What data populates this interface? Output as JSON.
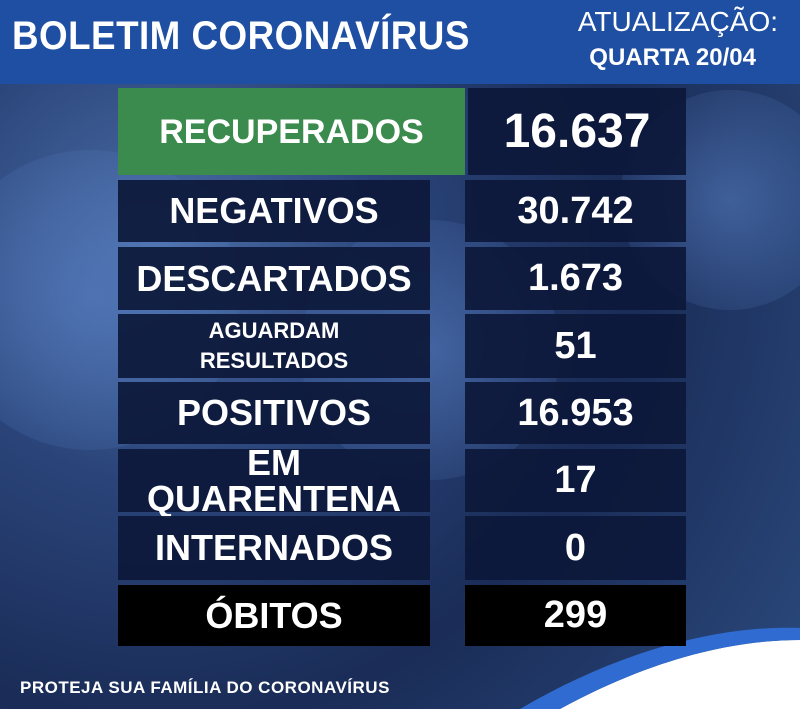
{
  "header": {
    "title": "BOLETIM CORONAVÍRUS",
    "update_label": "ATUALIZAÇÃO:",
    "update_date": "QUARTA 20/04"
  },
  "rows": [
    {
      "label": "RECUPERADOS",
      "value": "16.637"
    },
    {
      "label": "NEGATIVOS",
      "value": "30.742"
    },
    {
      "label": "DESCARTADOS",
      "value": "1.673"
    },
    {
      "label": "AGUARDAM\nRESULTADOS",
      "value": "51"
    },
    {
      "label": "POSITIVOS",
      "value": "16.953"
    },
    {
      "label": "EM QUARENTENA",
      "value": "17"
    },
    {
      "label": "INTERNADOS",
      "value": "0"
    },
    {
      "label": "ÓBITOS",
      "value": "299"
    }
  ],
  "footer": "PROTEJA SUA FAMÍLIA DO CORONAVÍRUS"
}
